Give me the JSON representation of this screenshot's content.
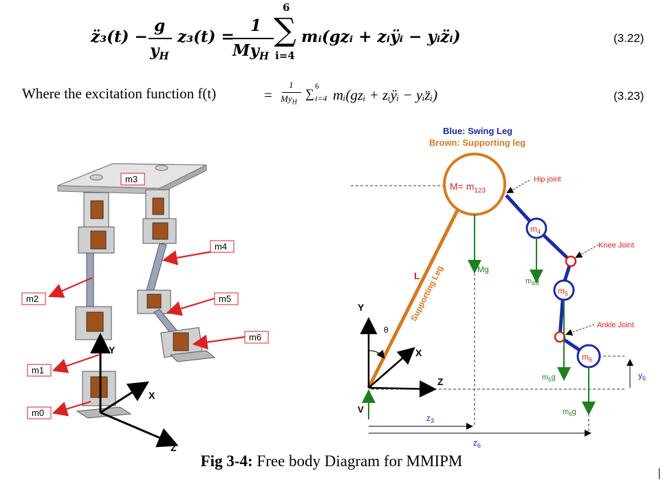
{
  "equations": {
    "eq322": {
      "lhs_a": "z̈₃(t) −",
      "frac1_num": "g",
      "frac1_den": "y",
      "frac1_den_sub": "H",
      "lhs_b": "z₃(t) =",
      "frac2_num": "1",
      "frac2_den": "My",
      "frac2_den_sub": "H",
      "sum_upper": "6",
      "sum_lower": "i=4",
      "rhs": "mᵢ(gzᵢ + zᵢÿᵢ − yᵢz̈ᵢ)",
      "number": "(3.22)"
    },
    "eq323": {
      "prefix": "Where the excitation function f(t)",
      "eq_sign": "=",
      "frac_num": "1",
      "frac_den": "My",
      "frac_den_sub": "H",
      "sum": "∑",
      "sum_upper": "6",
      "sum_lower": "i=4",
      "rhs": "mᵢ(gzᵢ + zᵢÿᵢ − yᵢz̈ᵢ)",
      "number": "(3.23)"
    }
  },
  "robot": {
    "labels": [
      "m3",
      "m4",
      "m2",
      "m5",
      "m6",
      "m1",
      "m0"
    ],
    "axes": [
      "Y",
      "X",
      "Z"
    ]
  },
  "fbd": {
    "legend_blue": "Blue: Swing Leg",
    "legend_brown": "Brown: Supporting leg",
    "hip_mass": "M= m",
    "hip_mass_sub": "123",
    "m4": "m",
    "m4_sub": "4",
    "m5": "m",
    "m5_sub": "5",
    "m6": "m",
    "m6_sub": "6",
    "hip_joint": "Hip joint",
    "knee_joint": "Knee Joint",
    "ankle_joint": "Ankle Joint",
    "L": "L",
    "supporting_leg": "Supporting Leg",
    "Mg": "Mg",
    "m4g": "m",
    "m4g_sub": "4",
    "m4g_g": "g",
    "m5g": "m",
    "m5g_sub": "5",
    "m5g_g": "g",
    "m6g": "m",
    "m6g_sub": "6",
    "m6g_g": "g",
    "y6": "y",
    "y6_sub": "6",
    "z3": "z",
    "z3_sub": "3",
    "z6": "z",
    "z6_sub": "6",
    "axis_Y": "Y",
    "axis_X": "X",
    "axis_Z": "Z",
    "theta": "θ",
    "V": "V",
    "colors": {
      "swing": "#1a2aa8",
      "support": "#d9781e",
      "force": "#1e7f1e",
      "joint": "#e01b1b"
    }
  },
  "caption": {
    "bold": "Fig 3-4:",
    "text": " Free body Diagram for MMIPM"
  }
}
